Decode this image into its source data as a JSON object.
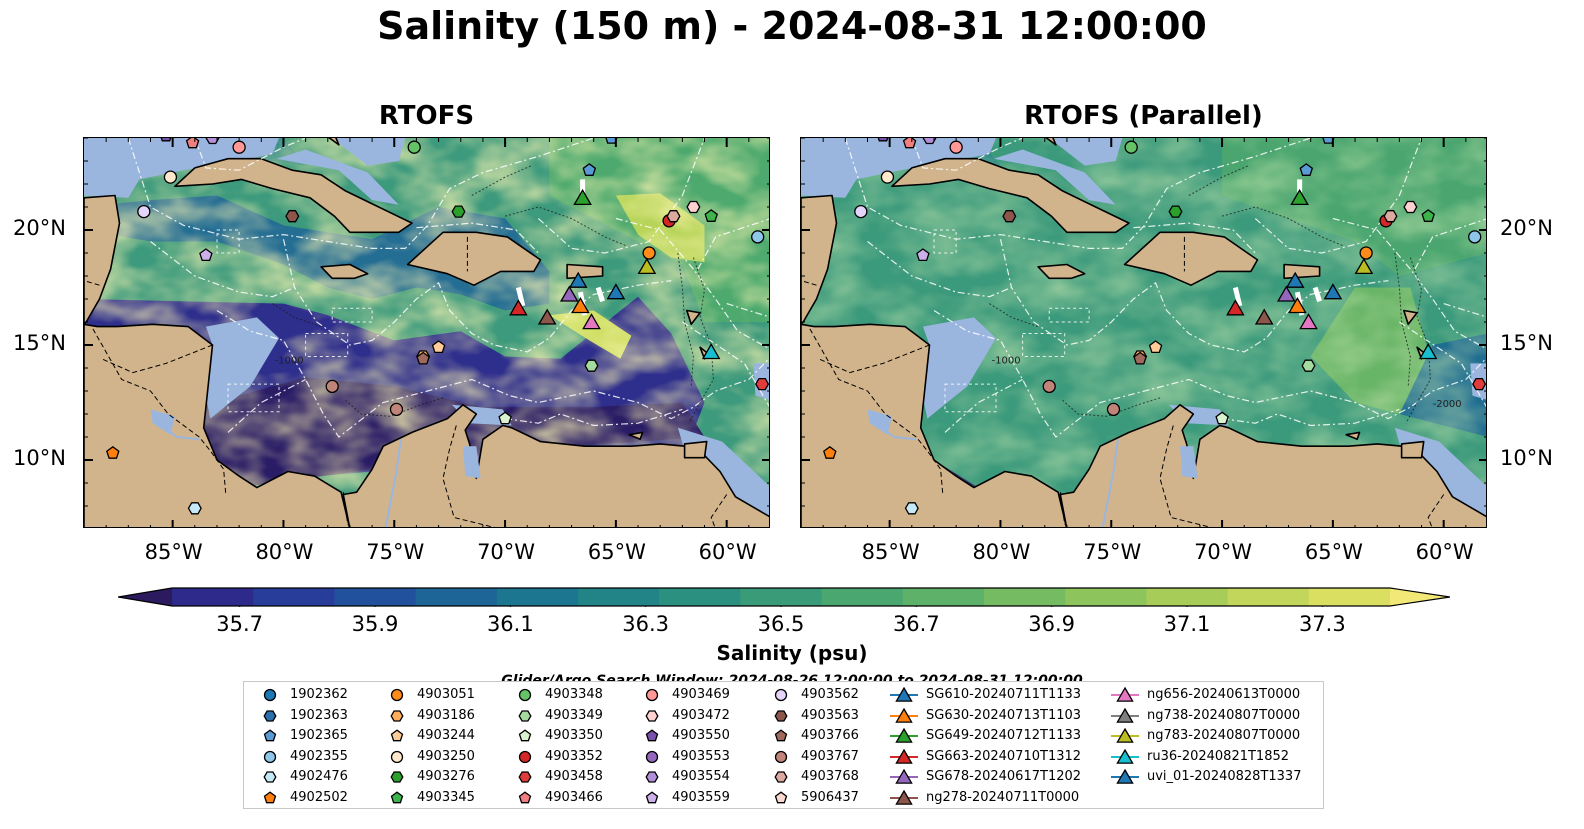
{
  "title": "Salinity (150 m) - 2024-08-31 12:00:00",
  "panels": [
    {
      "title": "RTOFS",
      "variant": "rtofs"
    },
    {
      "title": "RTOFS (Parallel)",
      "variant": "parallel"
    }
  ],
  "map_extent": {
    "lon_min": -89,
    "lon_max": -58,
    "lat_min": 7,
    "lat_max": 24
  },
  "lon_ticks": [
    {
      "lon": -85,
      "label": "85°W"
    },
    {
      "lon": -80,
      "label": "80°W"
    },
    {
      "lon": -75,
      "label": "75°W"
    },
    {
      "lon": -70,
      "label": "70°W"
    },
    {
      "lon": -65,
      "label": "65°W"
    },
    {
      "lon": -60,
      "label": "60°W"
    }
  ],
  "lat_ticks": [
    {
      "lat": 20,
      "label": "20°N"
    },
    {
      "lat": 15,
      "label": "15°N"
    },
    {
      "lat": 10,
      "label": "10°N"
    }
  ],
  "colorbar": {
    "label": "Salinity (psu)",
    "min": 35.6,
    "max": 37.4,
    "ticks": [
      "35.7",
      "35.9",
      "36.1",
      "36.3",
      "36.5",
      "36.7",
      "36.9",
      "37.1",
      "37.3"
    ],
    "tick_values": [
      35.7,
      35.9,
      36.1,
      36.3,
      36.5,
      36.7,
      36.9,
      37.1,
      37.3
    ],
    "colors": [
      "#2b1a5e",
      "#2d2a8c",
      "#283c9a",
      "#21519c",
      "#1c6596",
      "#1d7690",
      "#238487",
      "#2c9080",
      "#3a9b78",
      "#4aa76f",
      "#5eb168",
      "#75bb62",
      "#8ec45c",
      "#a7cd58",
      "#c1d65a",
      "#dadf62",
      "#f1e878"
    ],
    "extend": "both"
  },
  "search_window": "Glider/Argo Search Window: 2024-08-26 12:00:00 to 2024-08-31 12:00:00",
  "colors": {
    "land": "#d2b48c",
    "shelf": "#9ab6df",
    "background": "#ffffff"
  },
  "legend": [
    {
      "label": "1902362",
      "marker": "circle",
      "color": "#1f77b4"
    },
    {
      "label": "1902363",
      "marker": "hexagon",
      "color": "#2a6fae"
    },
    {
      "label": "1902365",
      "marker": "pentagon",
      "color": "#5b9bd5"
    },
    {
      "label": "4902355",
      "marker": "circle",
      "color": "#8ec7ea"
    },
    {
      "label": "4902476",
      "marker": "hexagon",
      "color": "#c7e9f7"
    },
    {
      "label": "4902502",
      "marker": "pentagon",
      "color": "#ff7f0e"
    },
    {
      "label": "4903051",
      "marker": "circle",
      "color": "#ff8c1a"
    },
    {
      "label": "4903186",
      "marker": "hexagon",
      "color": "#ffad5c"
    },
    {
      "label": "4903244",
      "marker": "pentagon",
      "color": "#ffcc99"
    },
    {
      "label": "4903250",
      "marker": "circle",
      "color": "#ffe8cc"
    },
    {
      "label": "4903276",
      "marker": "hexagon",
      "color": "#2ca02c"
    },
    {
      "label": "4903345",
      "marker": "pentagon",
      "color": "#3cb44b"
    },
    {
      "label": "4903348",
      "marker": "circle",
      "color": "#66c266"
    },
    {
      "label": "4903349",
      "marker": "hexagon",
      "color": "#a6dba0"
    },
    {
      "label": "4903350",
      "marker": "pentagon",
      "color": "#d9f2d0"
    },
    {
      "label": "4903352",
      "marker": "circle",
      "color": "#d62728"
    },
    {
      "label": "4903458",
      "marker": "hexagon",
      "color": "#e03c3c"
    },
    {
      "label": "4903466",
      "marker": "pentagon",
      "color": "#f08080"
    },
    {
      "label": "4903469",
      "marker": "circle",
      "color": "#ff9896"
    },
    {
      "label": "4903472",
      "marker": "hexagon",
      "color": "#ffd1d1"
    },
    {
      "label": "4903550",
      "marker": "pentagon",
      "color": "#7b52ab"
    },
    {
      "label": "4903553",
      "marker": "circle",
      "color": "#9467bd"
    },
    {
      "label": "4903554",
      "marker": "hexagon",
      "color": "#b38fd9"
    },
    {
      "label": "4903559",
      "marker": "pentagon",
      "color": "#cbb0ea"
    },
    {
      "label": "4903562",
      "marker": "circle",
      "color": "#e5d4fa"
    },
    {
      "label": "4903563",
      "marker": "hexagon",
      "color": "#8c564b"
    },
    {
      "label": "4903766",
      "marker": "pentagon",
      "color": "#a0695e"
    },
    {
      "label": "4903767",
      "marker": "circle",
      "color": "#c08478"
    },
    {
      "label": "4903768",
      "marker": "hexagon",
      "color": "#dcaa9f"
    },
    {
      "label": "5906437",
      "marker": "pentagon",
      "color": "#fcd9cf"
    },
    {
      "label": "SG610-20240711T1133",
      "marker": "triangle",
      "color": "#1f77b4"
    },
    {
      "label": "SG630-20240713T1103",
      "marker": "triangle",
      "color": "#ff7f0e"
    },
    {
      "label": "SG649-20240712T1133",
      "marker": "triangle",
      "color": "#2ca02c"
    },
    {
      "label": "SG663-20240710T1312",
      "marker": "triangle",
      "color": "#d62728"
    },
    {
      "label": "SG678-20240617T1202",
      "marker": "triangle",
      "color": "#9467bd"
    },
    {
      "label": "ng278-20240711T0000",
      "marker": "triangle",
      "color": "#8c564b"
    },
    {
      "label": "ng656-20240613T0000",
      "marker": "triangle",
      "color": "#e377c2"
    },
    {
      "label": "ng738-20240807T0000",
      "marker": "triangle",
      "color": "#7f7f7f"
    },
    {
      "label": "ng783-20240807T0000",
      "marker": "triangle",
      "color": "#bcbd22"
    },
    {
      "label": "ru36-20240821T1852",
      "marker": "triangle",
      "color": "#17becf"
    },
    {
      "label": "uvi_01-20240828T1337",
      "marker": "triangle",
      "color": "#1f77b4"
    }
  ],
  "observations": [
    {
      "id": "1902365",
      "lon": -65.2,
      "lat": 24.0
    },
    {
      "id": "1902365",
      "lon": -66.2,
      "lat": 22.6
    },
    {
      "id": "4902355",
      "lon": -58.6,
      "lat": 19.7
    },
    {
      "id": "4902476",
      "lon": -84.0,
      "lat": 7.9
    },
    {
      "id": "4902502",
      "lon": -87.7,
      "lat": 10.3
    },
    {
      "id": "4903051",
      "lon": -63.5,
      "lat": 19.0
    },
    {
      "id": "4903186",
      "lon": -73.7,
      "lat": 14.5
    },
    {
      "id": "4903244",
      "lon": -73.0,
      "lat": 14.9
    },
    {
      "id": "4903250",
      "lon": -85.1,
      "lat": 22.3
    },
    {
      "id": "4903276",
      "lon": -72.1,
      "lat": 20.8
    },
    {
      "id": "4903345",
      "lon": -60.7,
      "lat": 20.6
    },
    {
      "id": "4903348",
      "lon": -74.1,
      "lat": 23.6
    },
    {
      "id": "4903349",
      "lon": -66.1,
      "lat": 14.1
    },
    {
      "id": "4903350",
      "lon": -70.0,
      "lat": 11.8
    },
    {
      "id": "4903352",
      "lon": -62.6,
      "lat": 20.4
    },
    {
      "id": "4903458",
      "lon": -58.4,
      "lat": 13.3
    },
    {
      "id": "4903466",
      "lon": -84.1,
      "lat": 23.8
    },
    {
      "id": "4903469",
      "lon": -82.0,
      "lat": 23.6
    },
    {
      "id": "4903472",
      "lon": -61.5,
      "lat": 21.0
    },
    {
      "id": "4903550",
      "lon": -85.3,
      "lat": 24.1
    },
    {
      "id": "4903554",
      "lon": -83.2,
      "lat": 24.0
    },
    {
      "id": "4903559",
      "lon": -83.5,
      "lat": 18.9
    },
    {
      "id": "4903562",
      "lon": -86.3,
      "lat": 20.8
    },
    {
      "id": "4903563",
      "lon": -79.6,
      "lat": 20.6
    },
    {
      "id": "4903766",
      "lon": -73.7,
      "lat": 14.4
    },
    {
      "id": "4903767",
      "lon": -77.8,
      "lat": 13.2
    },
    {
      "id": "4903768",
      "lon": -62.4,
      "lat": 20.6
    },
    {
      "id": "4903767",
      "lon": -74.9,
      "lat": 12.2
    },
    {
      "id": "SG630-20240713T1103",
      "lon": -66.6,
      "lat": 16.7
    },
    {
      "id": "SG649-20240712T1133",
      "lon": -66.5,
      "lat": 21.4
    },
    {
      "id": "SG663-20240710T1312",
      "lon": -69.4,
      "lat": 16.6
    },
    {
      "id": "SG678-20240617T1202",
      "lon": -67.1,
      "lat": 17.2
    },
    {
      "id": "ng278-20240711T0000",
      "lon": -68.1,
      "lat": 16.2
    },
    {
      "id": "ng656-20240613T0000",
      "lon": -66.1,
      "lat": 16.0
    },
    {
      "id": "ng783-20240807T0000",
      "lon": -63.6,
      "lat": 18.4
    },
    {
      "id": "ru36-20240821T1852",
      "lon": -60.7,
      "lat": 14.7
    },
    {
      "id": "uvi_01-20240828T1337",
      "lon": -66.7,
      "lat": 17.8
    },
    {
      "id": "uvi_01-20240828T1337",
      "lon": -65.0,
      "lat": 17.3
    }
  ]
}
